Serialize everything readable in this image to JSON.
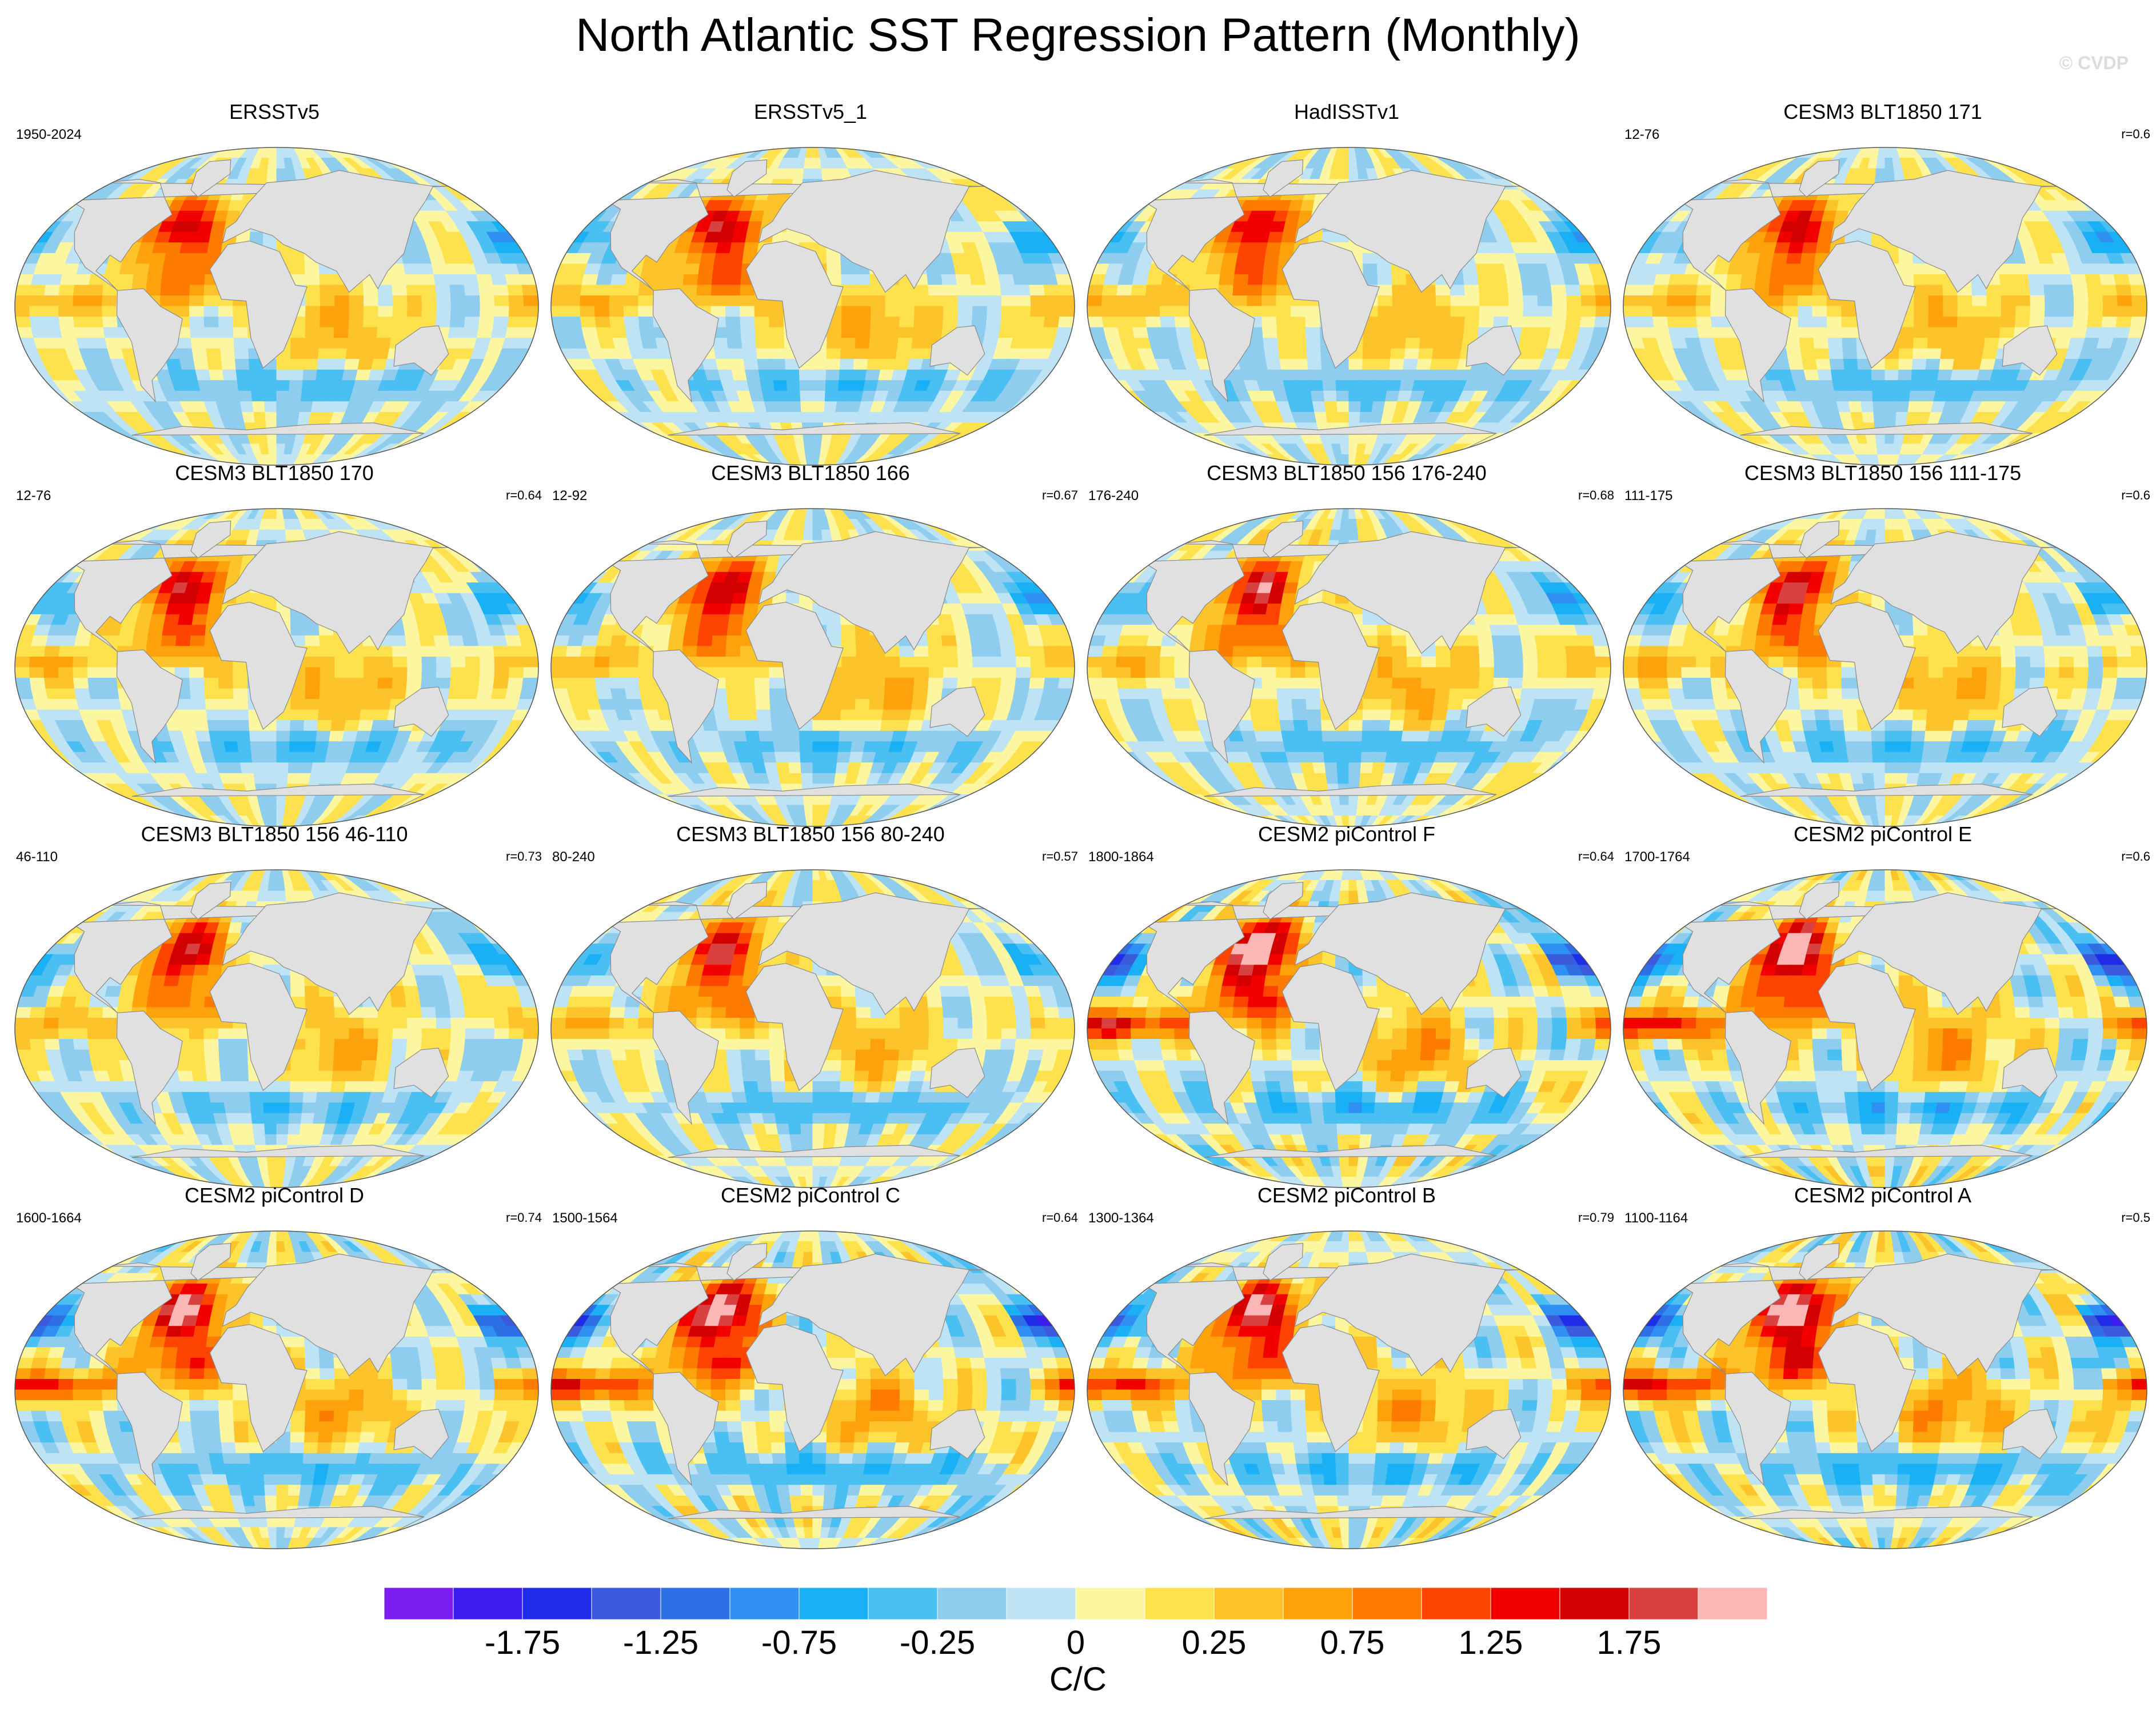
{
  "title": "North Atlantic SST Regression Pattern (Monthly)",
  "watermark": "© CVDP",
  "colors": {
    "land": "#e0e0e0",
    "levels": [
      "#7b1cf0",
      "#3d1cf0",
      "#1f2de8",
      "#3b5bdc",
      "#2f6fe6",
      "#2f8ff2",
      "#1ab0f5",
      "#49bff2",
      "#8fcdee",
      "#bde3f5",
      "#fdf6a0",
      "#fde24e",
      "#fcc42a",
      "#fda20b",
      "#fd7b00",
      "#fd4400",
      "#f20000",
      "#d30000",
      "#d94040",
      "#fbb6b6"
    ]
  },
  "colorbar": {
    "tick_labels": [
      "-1.75",
      "-1.25",
      "-0.75",
      "-0.25",
      "0",
      "0.25",
      "0.75",
      "1.25",
      "1.75"
    ],
    "units": "C/C"
  },
  "chart_data": {
    "type": "heatmap",
    "title": "North Atlantic SST Regression Pattern (Monthly)",
    "projection": "Robinson (global)",
    "legend_placement": "bottom",
    "color_levels": [
      -2.0,
      -1.75,
      -1.5,
      -1.25,
      -1.0,
      -0.75,
      -0.5,
      -0.25,
      -0.1,
      0,
      0.1,
      0.25,
      0.5,
      0.75,
      1.0,
      1.25,
      1.5,
      1.75,
      2.0
    ],
    "units": "C/C",
    "panels": [
      {
        "title": "ERSSTv5",
        "years": "1950-2024",
        "corr": "",
        "amp": 0.9
      },
      {
        "title": "ERSSTv5_1",
        "years": "",
        "corr": "",
        "amp": 0.95
      },
      {
        "title": "HadISSTv1",
        "years": "",
        "corr": "",
        "amp": 0.9
      },
      {
        "title": "CESM3 BLT1850 171",
        "years": "12-76",
        "corr": "r=0.6",
        "amp": 0.9
      },
      {
        "title": "CESM3 BLT1850 170",
        "years": "12-76",
        "corr": "r=0.64",
        "amp": 0.95
      },
      {
        "title": "CESM3 BLT1850 166",
        "years": "12-92",
        "corr": "r=0.67",
        "amp": 0.95
      },
      {
        "title": "CESM3 BLT1850 156 176-240",
        "years": "176-240",
        "corr": "r=0.68",
        "amp": 1.0
      },
      {
        "title": "CESM3 BLT1850 156 111-175",
        "years": "111-175",
        "corr": "r=0.6",
        "amp": 1.0
      },
      {
        "title": "CESM3 BLT1850 156 46-110",
        "years": "46-110",
        "corr": "r=0.73",
        "amp": 0.95
      },
      {
        "title": "CESM3 BLT1850 156 80-240",
        "years": "80-240",
        "corr": "r=0.57",
        "amp": 0.95
      },
      {
        "title": "CESM2 piControl F",
        "years": "1800-1864",
        "corr": "r=0.64",
        "amp": 1.3
      },
      {
        "title": "CESM2 piControl E",
        "years": "1700-1764",
        "corr": "r=0.6",
        "amp": 1.25
      },
      {
        "title": "CESM2 piControl D",
        "years": "1600-1664",
        "corr": "r=0.74",
        "amp": 1.1
      },
      {
        "title": "CESM2 piControl C",
        "years": "1500-1564",
        "corr": "r=0.64",
        "amp": 1.25
      },
      {
        "title": "CESM2 piControl B",
        "years": "1300-1364",
        "corr": "r=0.79",
        "amp": 1.15
      },
      {
        "title": "CESM2 piControl A",
        "years": "1100-1164",
        "corr": "r=0.5",
        "amp": 1.3
      }
    ]
  }
}
